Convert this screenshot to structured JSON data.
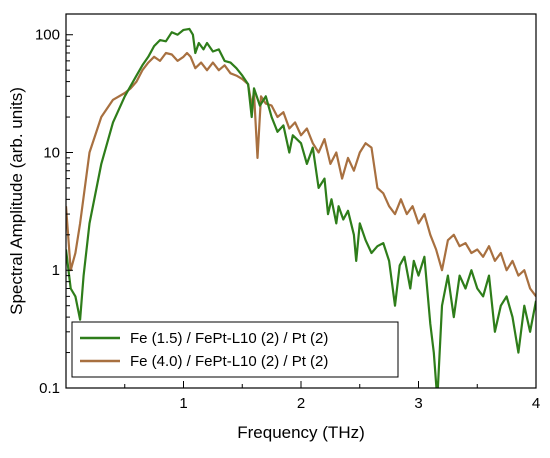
{
  "chart_data": {
    "type": "line",
    "xlabel": "Frequency (THz)",
    "ylabel": "Spectral Amplitude (arb. units)",
    "xlim": [
      0,
      4
    ],
    "ylim": [
      0.1,
      150
    ],
    "yscale": "log",
    "x_ticks": [
      1,
      2,
      3,
      4
    ],
    "x_tick_labels": [
      "1",
      "2",
      "3",
      "4"
    ],
    "y_ticks": [
      0.1,
      1,
      10,
      100
    ],
    "y_tick_labels": [
      "0.1",
      "1",
      "10",
      "100"
    ],
    "grid": false,
    "legend_position": "bottom-left",
    "series": [
      {
        "name": "Fe (1.5) / FePt-L10 (2) / Pt (2)",
        "color": "#2e7d1a",
        "points": [
          [
            0.0,
            1.5
          ],
          [
            0.04,
            0.7
          ],
          [
            0.08,
            0.6
          ],
          [
            0.12,
            0.38
          ],
          [
            0.15,
            0.9
          ],
          [
            0.2,
            2.5
          ],
          [
            0.3,
            8
          ],
          [
            0.4,
            18
          ],
          [
            0.5,
            30
          ],
          [
            0.6,
            45
          ],
          [
            0.65,
            55
          ],
          [
            0.7,
            65
          ],
          [
            0.75,
            80
          ],
          [
            0.8,
            90
          ],
          [
            0.85,
            88
          ],
          [
            0.9,
            105
          ],
          [
            0.95,
            100
          ],
          [
            1.0,
            110
          ],
          [
            1.05,
            112
          ],
          [
            1.08,
            100
          ],
          [
            1.1,
            70
          ],
          [
            1.13,
            85
          ],
          [
            1.17,
            75
          ],
          [
            1.2,
            85
          ],
          [
            1.25,
            72
          ],
          [
            1.3,
            75
          ],
          [
            1.35,
            60
          ],
          [
            1.4,
            58
          ],
          [
            1.45,
            52
          ],
          [
            1.5,
            45
          ],
          [
            1.55,
            38
          ],
          [
            1.58,
            20
          ],
          [
            1.6,
            35
          ],
          [
            1.65,
            25
          ],
          [
            1.7,
            30
          ],
          [
            1.75,
            20
          ],
          [
            1.8,
            15
          ],
          [
            1.85,
            17
          ],
          [
            1.9,
            10
          ],
          [
            1.93,
            14
          ],
          [
            2.0,
            12
          ],
          [
            2.05,
            8
          ],
          [
            2.1,
            11
          ],
          [
            2.15,
            5
          ],
          [
            2.2,
            6
          ],
          [
            2.23,
            3
          ],
          [
            2.26,
            4
          ],
          [
            2.3,
            2.5
          ],
          [
            2.32,
            3.5
          ],
          [
            2.36,
            2.7
          ],
          [
            2.4,
            3.2
          ],
          [
            2.45,
            2
          ],
          [
            2.47,
            1.2
          ],
          [
            2.5,
            2.5
          ],
          [
            2.55,
            1.8
          ],
          [
            2.6,
            1.4
          ],
          [
            2.65,
            1.6
          ],
          [
            2.7,
            1.7
          ],
          [
            2.75,
            1.2
          ],
          [
            2.8,
            0.5
          ],
          [
            2.84,
            1.1
          ],
          [
            2.88,
            1.3
          ],
          [
            2.93,
            0.7
          ],
          [
            2.96,
            1.2
          ],
          [
            3.0,
            0.9
          ],
          [
            3.05,
            1.3
          ],
          [
            3.1,
            0.35
          ],
          [
            3.13,
            0.2
          ],
          [
            3.16,
            0.08
          ],
          [
            3.2,
            0.5
          ],
          [
            3.25,
            0.9
          ],
          [
            3.3,
            0.4
          ],
          [
            3.35,
            0.9
          ],
          [
            3.4,
            0.7
          ],
          [
            3.45,
            1.0
          ],
          [
            3.5,
            0.7
          ],
          [
            3.55,
            0.6
          ],
          [
            3.6,
            0.9
          ],
          [
            3.65,
            0.3
          ],
          [
            3.7,
            0.5
          ],
          [
            3.75,
            0.6
          ],
          [
            3.8,
            0.4
          ],
          [
            3.85,
            0.2
          ],
          [
            3.9,
            0.5
          ],
          [
            3.95,
            0.3
          ],
          [
            4.0,
            0.55
          ]
        ]
      },
      {
        "name": "Fe (4.0) / FePt-L10 (2) / Pt (2)",
        "color": "#a87040",
        "points": [
          [
            0.0,
            3.5
          ],
          [
            0.04,
            1.0
          ],
          [
            0.08,
            1.4
          ],
          [
            0.12,
            2.5
          ],
          [
            0.2,
            10
          ],
          [
            0.3,
            20
          ],
          [
            0.4,
            28
          ],
          [
            0.5,
            32
          ],
          [
            0.55,
            35
          ],
          [
            0.6,
            40
          ],
          [
            0.65,
            50
          ],
          [
            0.7,
            58
          ],
          [
            0.75,
            65
          ],
          [
            0.8,
            60
          ],
          [
            0.85,
            70
          ],
          [
            0.9,
            68
          ],
          [
            0.95,
            60
          ],
          [
            1.0,
            65
          ],
          [
            1.03,
            70
          ],
          [
            1.06,
            65
          ],
          [
            1.1,
            52
          ],
          [
            1.15,
            58
          ],
          [
            1.2,
            50
          ],
          [
            1.25,
            58
          ],
          [
            1.3,
            50
          ],
          [
            1.35,
            55
          ],
          [
            1.4,
            47
          ],
          [
            1.45,
            45
          ],
          [
            1.5,
            42
          ],
          [
            1.55,
            38
          ],
          [
            1.58,
            25
          ],
          [
            1.6,
            32
          ],
          [
            1.63,
            9
          ],
          [
            1.66,
            30
          ],
          [
            1.7,
            26
          ],
          [
            1.75,
            25
          ],
          [
            1.8,
            20
          ],
          [
            1.85,
            22
          ],
          [
            1.9,
            16
          ],
          [
            1.95,
            18
          ],
          [
            2.0,
            14
          ],
          [
            2.05,
            16
          ],
          [
            2.1,
            12
          ],
          [
            2.15,
            10
          ],
          [
            2.2,
            13
          ],
          [
            2.25,
            8
          ],
          [
            2.3,
            10
          ],
          [
            2.35,
            6
          ],
          [
            2.4,
            9
          ],
          [
            2.45,
            7
          ],
          [
            2.5,
            10
          ],
          [
            2.55,
            12
          ],
          [
            2.6,
            11
          ],
          [
            2.65,
            5
          ],
          [
            2.7,
            4.5
          ],
          [
            2.75,
            3.5
          ],
          [
            2.8,
            3
          ],
          [
            2.85,
            4
          ],
          [
            2.9,
            3
          ],
          [
            2.95,
            3.5
          ],
          [
            3.0,
            2.5
          ],
          [
            3.05,
            3
          ],
          [
            3.1,
            2
          ],
          [
            3.15,
            1.5
          ],
          [
            3.2,
            1.0
          ],
          [
            3.25,
            1.8
          ],
          [
            3.3,
            2.0
          ],
          [
            3.35,
            1.6
          ],
          [
            3.4,
            1.7
          ],
          [
            3.45,
            1.4
          ],
          [
            3.5,
            1.5
          ],
          [
            3.55,
            1.3
          ],
          [
            3.6,
            1.6
          ],
          [
            3.65,
            1.2
          ],
          [
            3.7,
            1.4
          ],
          [
            3.75,
            1.0
          ],
          [
            3.8,
            1.2
          ],
          [
            3.85,
            0.9
          ],
          [
            3.9,
            1.0
          ],
          [
            3.95,
            0.7
          ],
          [
            4.0,
            0.6
          ]
        ]
      }
    ]
  }
}
